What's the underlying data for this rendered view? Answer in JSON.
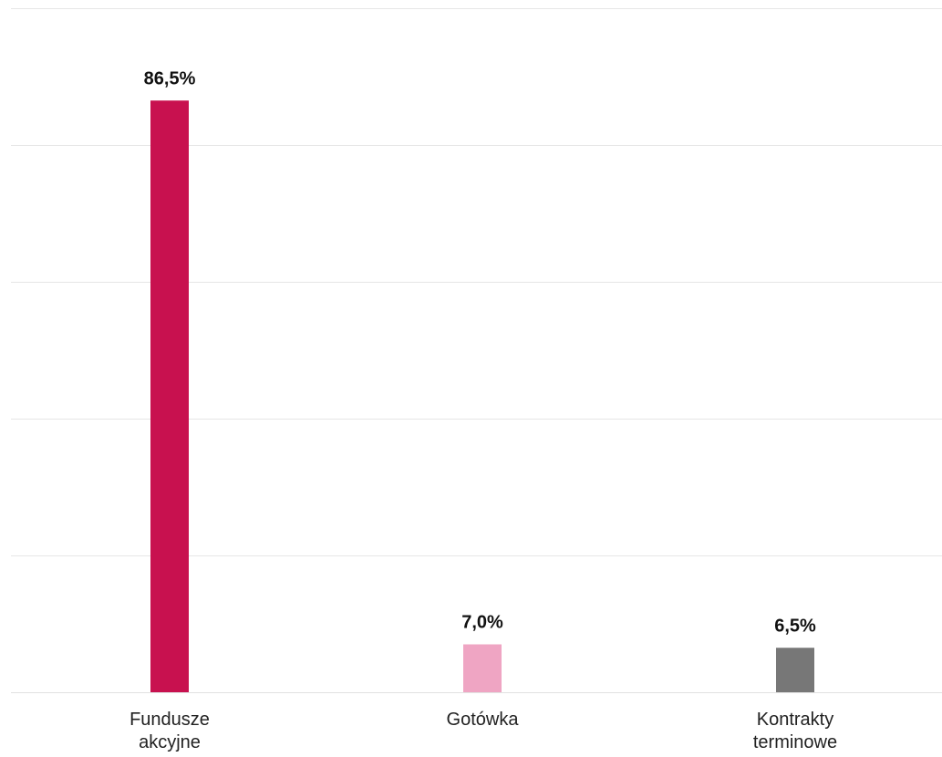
{
  "chart_data": {
    "type": "bar",
    "categories": [
      [
        "Fundusze",
        "akcyjne"
      ],
      [
        "Gotówka"
      ],
      [
        "Kontrakty",
        "terminowe"
      ]
    ],
    "values": [
      86.5,
      7.0,
      6.5
    ],
    "value_labels": [
      "86,5%",
      "7,0%",
      "6,5%"
    ],
    "colors": [
      "#c8114f",
      "#efa5c3",
      "#777777"
    ],
    "ylim": [
      0,
      100
    ],
    "grid": true,
    "gridlines": [
      0,
      20,
      40,
      60,
      80,
      100
    ],
    "legend": "none"
  }
}
